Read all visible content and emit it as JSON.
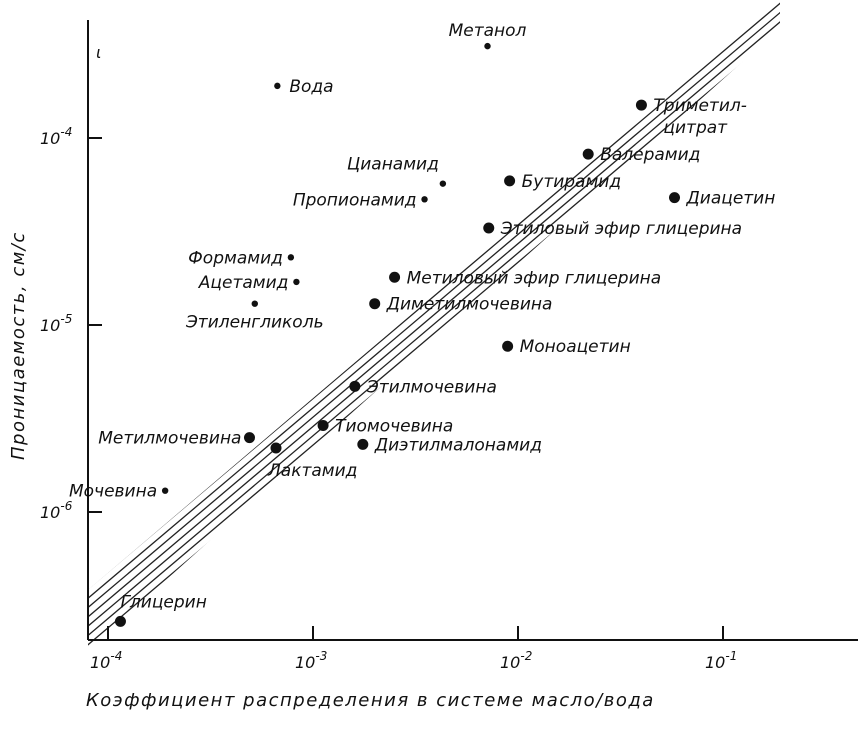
{
  "chart_data": {
    "type": "scatter",
    "title": "",
    "xlabel": "Коэффициент  распределения  в  системе  масло/вода",
    "ylabel": "Проницаемость, см/с",
    "xscale": "log",
    "yscale": "log",
    "xlim": [
      0.0001,
      0.5
    ],
    "ylim": [
      1.2e-07,
      0.0008
    ],
    "grid": false,
    "x_ticks": [
      {
        "value": 0.0001,
        "base": "10",
        "exp": "-4"
      },
      {
        "value": 0.001,
        "base": "10",
        "exp": "-3"
      },
      {
        "value": 0.01,
        "base": "10",
        "exp": "-2"
      },
      {
        "value": 0.1,
        "base": "10",
        "exp": "-1"
      }
    ],
    "y_ticks": [
      {
        "value": 1e-06,
        "base": "10",
        "exp": "-6"
      },
      {
        "value": 1e-05,
        "base": "10",
        "exp": "-5"
      },
      {
        "value": 0.0001,
        "base": "10",
        "exp": "-4"
      }
    ],
    "y_top_tick_label": "ι",
    "band": {
      "description": "hatched band",
      "slope": 1
    },
    "points": [
      {
        "name": "Метанол",
        "x": 0.0071,
        "y": 0.00031,
        "size": "small",
        "label_pos": "above"
      },
      {
        "name": "Вода",
        "x": 0.00067,
        "y": 0.00019,
        "size": "small",
        "label_pos": "right"
      },
      {
        "name": "Триметил-цитрат",
        "x": 0.04,
        "y": 0.00015,
        "size": "large",
        "label_pos": "right2"
      },
      {
        "name": "Валерамид",
        "x": 0.022,
        "y": 8.2e-05,
        "size": "large",
        "label_pos": "right"
      },
      {
        "name": "Цианамид",
        "x": 0.0043,
        "y": 5.7e-05,
        "size": "small",
        "label_pos": "aboveleft"
      },
      {
        "name": "Бутирамид",
        "x": 0.0091,
        "y": 5.9e-05,
        "size": "large",
        "label_pos": "right"
      },
      {
        "name": "Диацетин",
        "x": 0.058,
        "y": 4.8e-05,
        "size": "large",
        "label_pos": "right"
      },
      {
        "name": "Пропионамид",
        "x": 0.0035,
        "y": 4.7e-05,
        "size": "small",
        "label_pos": "left"
      },
      {
        "name": "Этиловый эфир глицерина",
        "x": 0.0072,
        "y": 3.3e-05,
        "size": "large",
        "label_pos": "right"
      },
      {
        "name": "Формамид",
        "x": 0.00078,
        "y": 2.3e-05,
        "size": "small",
        "label_pos": "left"
      },
      {
        "name": "Ацетамид",
        "x": 0.00083,
        "y": 1.7e-05,
        "size": "small",
        "label_pos": "left"
      },
      {
        "name": "Метиловый эфир глицерина",
        "x": 0.0025,
        "y": 1.8e-05,
        "size": "large",
        "label_pos": "right"
      },
      {
        "name": "Этиленгликоль",
        "x": 0.00052,
        "y": 1.3e-05,
        "size": "small",
        "label_pos": "below"
      },
      {
        "name": "Диметилмочевина",
        "x": 0.002,
        "y": 1.3e-05,
        "size": "large",
        "label_pos": "right"
      },
      {
        "name": "Моноацетин",
        "x": 0.0089,
        "y": 7.7e-06,
        "size": "large",
        "label_pos": "right"
      },
      {
        "name": "Этилмочевина",
        "x": 0.0016,
        "y": 4.7e-06,
        "size": "large",
        "label_pos": "right"
      },
      {
        "name": "Тиомочевина",
        "x": 0.00112,
        "y": 2.9e-06,
        "size": "large",
        "label_pos": "right"
      },
      {
        "name": "Метилмочевина",
        "x": 0.00049,
        "y": 2.5e-06,
        "size": "large",
        "label_pos": "left"
      },
      {
        "name": "Диэтилмалонамид",
        "x": 0.00175,
        "y": 2.3e-06,
        "size": "large",
        "label_pos": "right"
      },
      {
        "name": "Лактамид",
        "x": 0.00066,
        "y": 2.2e-06,
        "size": "large",
        "label_pos": "belowright"
      },
      {
        "name": "Мочевина",
        "x": 0.00019,
        "y": 1.3e-06,
        "size": "small",
        "label_pos": "left"
      },
      {
        "name": "Глицерин",
        "x": 0.000115,
        "y": 2.6e-07,
        "size": "large",
        "label_pos": "aboveright"
      }
    ]
  }
}
